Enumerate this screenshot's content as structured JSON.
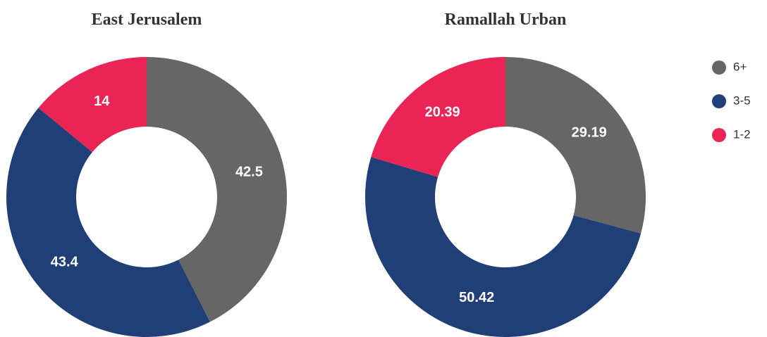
{
  "chart_data": [
    {
      "type": "donut",
      "title": "East Jerusalem",
      "values": [
        42.5,
        43.4,
        14
      ]
    },
    {
      "type": "donut",
      "title": "Ramallah Urban",
      "values": [
        29.19,
        50.42,
        20.39
      ]
    }
  ],
  "legend": {
    "items": [
      {
        "label": "6+",
        "color": "#666666"
      },
      {
        "label": "3-5",
        "color": "#213f77"
      },
      {
        "label": "1-2",
        "color": "#ea2454"
      }
    ]
  }
}
